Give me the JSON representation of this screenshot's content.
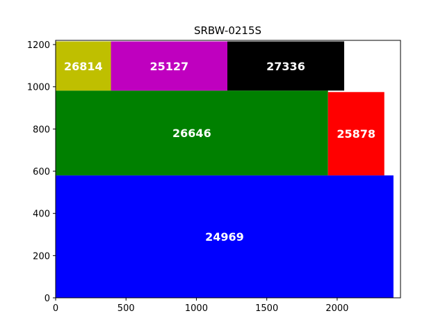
{
  "chart_data": {
    "type": "treemap",
    "title": "SRBW-0215S",
    "xlim": [
      0,
      2450
    ],
    "ylim": [
      0,
      1220
    ],
    "x_ticks": [
      0,
      500,
      1000,
      1500,
      2000
    ],
    "y_ticks": [
      0,
      200,
      400,
      600,
      800,
      1000,
      1200
    ],
    "grid": false,
    "rectangles": [
      {
        "label": "24969",
        "x0": 0,
        "x1": 2400,
        "y0": 0,
        "y1": 580,
        "color": "#0000ff"
      },
      {
        "label": "26646",
        "x0": 0,
        "x1": 1935,
        "y0": 580,
        "y1": 982,
        "color": "#008000"
      },
      {
        "label": "25878",
        "x0": 1935,
        "x1": 2335,
        "y0": 580,
        "y1": 975,
        "color": "#ff0000"
      },
      {
        "label": "26814",
        "x0": 0,
        "x1": 393,
        "y0": 982,
        "y1": 1215,
        "color": "#bfbf00"
      },
      {
        "label": "25127",
        "x0": 393,
        "x1": 1220,
        "y0": 982,
        "y1": 1215,
        "color": "#bf00bf"
      },
      {
        "label": "27336",
        "x0": 1220,
        "x1": 2050,
        "y0": 982,
        "y1": 1215,
        "color": "#000000"
      }
    ]
  }
}
